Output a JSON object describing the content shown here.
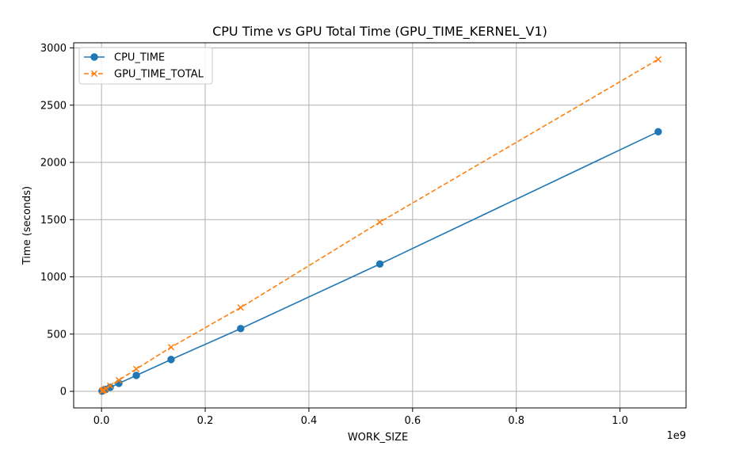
{
  "chart_data": {
    "type": "line",
    "title": "CPU Time vs GPU Total Time (GPU_TIME_KERNEL_V1)",
    "xlabel": "WORK_SIZE",
    "ylabel": "Time (seconds)",
    "x_offset_text": "1e9",
    "x_ticks": [
      0.0,
      0.2,
      0.4,
      0.6,
      0.8,
      1.0
    ],
    "x_tick_labels": [
      "0.0",
      "0.2",
      "0.4",
      "0.6",
      "0.8",
      "1.0"
    ],
    "y_ticks": [
      0,
      500,
      1000,
      1500,
      2000,
      2500,
      3000
    ],
    "y_tick_labels": [
      "0",
      "500",
      "1000",
      "1500",
      "2000",
      "2500",
      "3000"
    ],
    "xlim": [
      -0.053687,
      1.127433
    ],
    "ylim": [
      -145,
      3045
    ],
    "grid": true,
    "legend_position": "top-left",
    "x": [
      0.001048576,
      0.002097152,
      0.004194304,
      0.008388608,
      0.016777216,
      0.033554432,
      0.067108864,
      0.134217728,
      0.268435456,
      0.536870912,
      1.073741824
    ],
    "series": [
      {
        "name": "CPU_TIME",
        "color": "#1f77b4",
        "line_style": "solid",
        "marker": "circle",
        "values": [
          2,
          4,
          9,
          17,
          35,
          70,
          139,
          278,
          548,
          1112,
          2268
        ]
      },
      {
        "name": "GPU_TIME_TOTAL",
        "color": "#ff7f0e",
        "line_style": "dashed",
        "marker": "x",
        "values": [
          3,
          6,
          12,
          24,
          49,
          97,
          195,
          386,
          732,
          1478,
          2900
        ]
      }
    ]
  }
}
